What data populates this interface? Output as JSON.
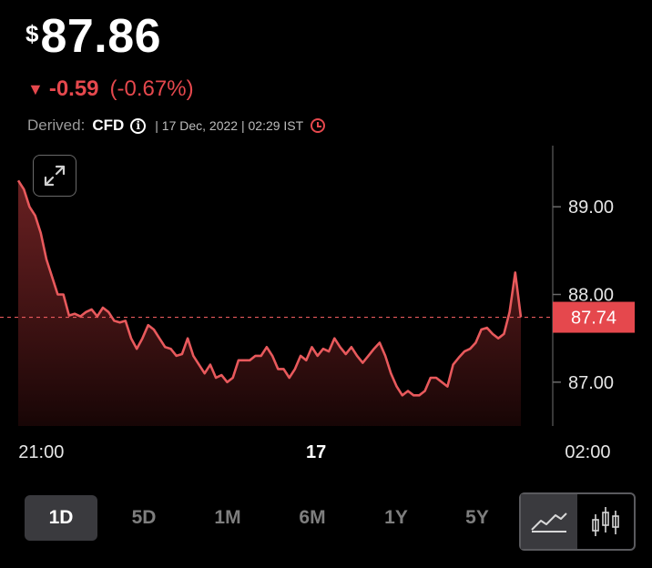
{
  "price": {
    "currency": "$",
    "value": "87.86"
  },
  "change": {
    "absolute": "-0.59",
    "percent": "(-0.67%)",
    "color": "#e5484d"
  },
  "derived": {
    "label": "Derived:",
    "type": "CFD",
    "meta": "| 17 Dec, 2022 | 02:29 IST"
  },
  "icons": {
    "info": "i",
    "expand": "expand-icon",
    "clock": "clock-icon",
    "line_chart": "line-chart-icon",
    "candlestick": "candlestick-icon"
  },
  "timeframes": [
    "1D",
    "5D",
    "1M",
    "6M",
    "1Y",
    "5Y"
  ],
  "active_timeframe": "1D",
  "chart_data": {
    "type": "area",
    "y_ticks": [
      "89.00",
      "88.00",
      "87.00"
    ],
    "ylim": [
      86.5,
      89.5
    ],
    "x_ticks": [
      {
        "label": "21:00",
        "x": 6.5,
        "bold": false
      },
      {
        "label": "17",
        "x": 49.8,
        "bold": true
      },
      {
        "label": "02:00",
        "x": 92.6,
        "bold": false
      }
    ],
    "xlim": [
      0,
      100
    ],
    "reference_line": {
      "value": 87.74,
      "label": "87.74"
    },
    "line_color": "#e8595c",
    "values": [
      89.3,
      89.2,
      89.0,
      88.9,
      88.7,
      88.4,
      88.2,
      88.0,
      88.0,
      87.76,
      87.78,
      87.75,
      87.8,
      87.83,
      87.75,
      87.85,
      87.8,
      87.7,
      87.68,
      87.7,
      87.5,
      87.38,
      87.5,
      87.65,
      87.6,
      87.5,
      87.4,
      87.38,
      87.3,
      87.32,
      87.5,
      87.3,
      87.2,
      87.1,
      87.2,
      87.05,
      87.08,
      87.0,
      87.05,
      87.25,
      87.25,
      87.25,
      87.3,
      87.3,
      87.4,
      87.3,
      87.15,
      87.15,
      87.05,
      87.15,
      87.3,
      87.25,
      87.4,
      87.3,
      87.38,
      87.35,
      87.5,
      87.4,
      87.32,
      87.4,
      87.3,
      87.22,
      87.3,
      87.38,
      87.45,
      87.3,
      87.1,
      86.95,
      86.85,
      86.9,
      86.85,
      86.85,
      86.9,
      87.05,
      87.05,
      87.0,
      86.95,
      87.2,
      87.28,
      87.35,
      87.38,
      87.45,
      87.6,
      87.62,
      87.55,
      87.5,
      87.55,
      87.8,
      88.25,
      87.74
    ]
  }
}
